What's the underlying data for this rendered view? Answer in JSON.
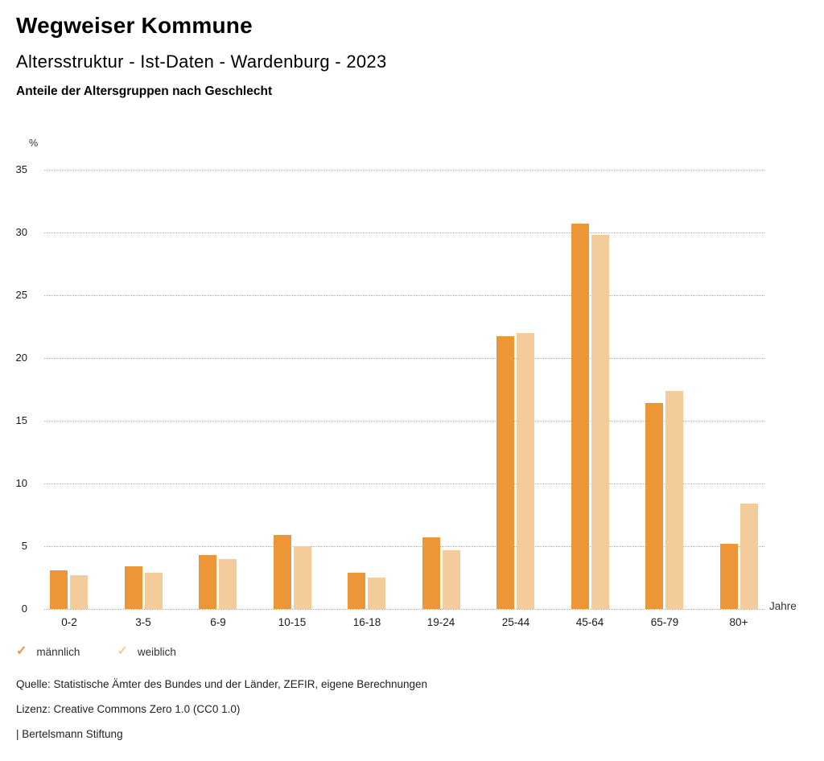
{
  "header": {
    "title": "Wegweiser Kommune",
    "subtitle": "Altersstruktur - Ist-Daten - Wardenburg - 2023",
    "description": "Anteile der Altersgruppen nach Geschlecht"
  },
  "chart_data": {
    "type": "bar",
    "title": "Anteile der Altersgruppen nach Geschlecht",
    "categories": [
      "0-2",
      "3-5",
      "6-9",
      "10-15",
      "16-18",
      "19-24",
      "25-44",
      "45-64",
      "65-79",
      "80+"
    ],
    "series": [
      {
        "name": "männlich",
        "color": "#ec9637",
        "values": [
          3.1,
          3.4,
          4.3,
          5.9,
          2.9,
          5.7,
          21.7,
          30.7,
          16.4,
          5.2
        ]
      },
      {
        "name": "weiblich",
        "color": "#f4cb9a",
        "values": [
          2.7,
          2.9,
          4.0,
          5.0,
          2.5,
          4.7,
          22.0,
          29.8,
          17.4,
          8.4
        ]
      }
    ],
    "xlabel": "Jahre",
    "ylabel": "%",
    "ylim": [
      0,
      35
    ],
    "yticks": [
      0,
      5,
      10,
      15,
      20,
      25,
      30,
      35
    ],
    "grid": "horizontal-dotted",
    "legend_position": "bottom-left"
  },
  "legend": {
    "check_icon": "✓",
    "items": [
      {
        "label": "männlich",
        "color": "#ec9637"
      },
      {
        "label": "weiblich",
        "color": "#f4cb9a"
      }
    ]
  },
  "footer": {
    "source": "Quelle: Statistische Ämter des Bundes und der Länder, ZEFIR, eigene Berechnungen",
    "license": "Lizenz: Creative Commons Zero 1.0 (CC0 1.0)",
    "attribution": "| Bertelsmann Stiftung"
  }
}
